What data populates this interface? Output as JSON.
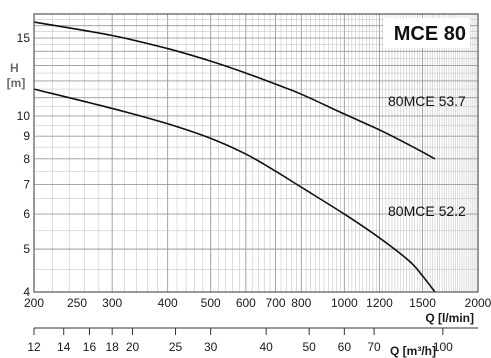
{
  "chart_data": {
    "type": "line",
    "title": "MCE 80",
    "ylabel": "H\n[m]",
    "xlabel": "Q [l/min]",
    "x2label": "Q [m³/h]",
    "x_scale": "log",
    "y_scale": "log",
    "xlim": [
      200,
      2000
    ],
    "ylim": [
      4,
      17
    ],
    "x_ticks": [
      200,
      250,
      300,
      400,
      500,
      600,
      700,
      800,
      1000,
      1200,
      1500,
      2000
    ],
    "x_tick_labels": [
      "200",
      "250",
      "300",
      "400",
      "500",
      "600",
      "700",
      "800",
      "1000",
      "1200",
      "1500",
      "2000"
    ],
    "y_ticks": [
      4,
      5,
      6,
      7,
      8,
      9,
      10,
      15
    ],
    "y_tick_labels": [
      "4",
      "5",
      "6",
      "7",
      "8",
      "9",
      "10",
      "15"
    ],
    "x2_ticks": [
      12,
      14,
      16,
      18,
      20,
      25,
      30,
      40,
      50,
      60,
      70,
      100
    ],
    "x2_tick_labels": [
      "12",
      "14",
      "16",
      "18",
      "20",
      "25",
      "30",
      "40",
      "50",
      "60",
      "70",
      "100"
    ],
    "grid": true,
    "colors": {
      "curve": "#111111",
      "grid": "#bbbbbb",
      "frame": "#555555"
    },
    "series": [
      {
        "name": "80MCE 53.7",
        "x": [
          200,
          300,
          400,
          500,
          600,
          700,
          800,
          1000,
          1200,
          1400,
          1600
        ],
        "y": [
          16.3,
          15.2,
          14.2,
          13.3,
          12.5,
          11.8,
          11.2,
          10.1,
          9.3,
          8.6,
          8.0
        ]
      },
      {
        "name": "80MCE 52.2",
        "x": [
          200,
          300,
          400,
          500,
          600,
          700,
          800,
          1000,
          1200,
          1400,
          1500,
          1600
        ],
        "y": [
          11.5,
          10.4,
          9.6,
          8.9,
          8.2,
          7.5,
          6.9,
          6.0,
          5.3,
          4.7,
          4.35,
          4.0
        ]
      }
    ]
  }
}
